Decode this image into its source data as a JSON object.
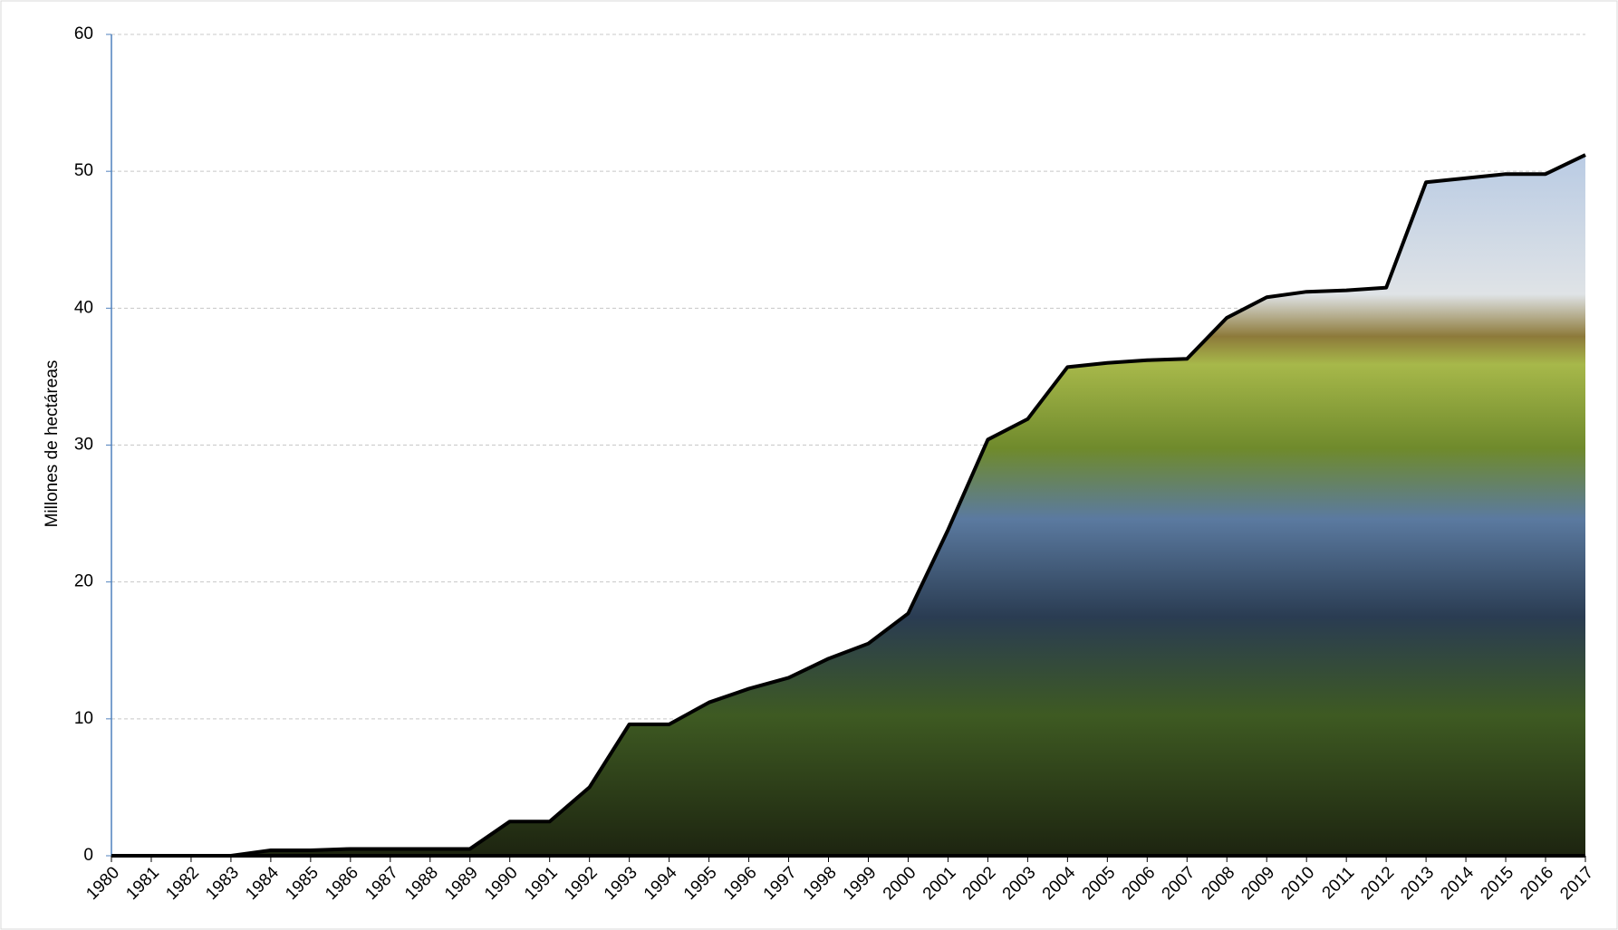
{
  "chart_data": {
    "type": "area",
    "y_label": "Millones de hectáreas",
    "categories": [
      "1980",
      "1981",
      "1982",
      "1983",
      "1984",
      "1985",
      "1986",
      "1987",
      "1988",
      "1989",
      "1990",
      "1991",
      "1992",
      "1993",
      "1994",
      "1995",
      "1996",
      "1997",
      "1998",
      "1999",
      "2000",
      "2001",
      "2002",
      "2003",
      "2004",
      "2005",
      "2006",
      "2007",
      "2008",
      "2009",
      "2010",
      "2011",
      "2012",
      "2013",
      "2014",
      "2015",
      "2016",
      "2017"
    ],
    "values": [
      0,
      0,
      0,
      0,
      0.4,
      0.4,
      0.5,
      0.5,
      0.5,
      0.5,
      2.5,
      2.5,
      5.0,
      9.6,
      9.6,
      11.2,
      12.2,
      13.0,
      14.4,
      15.5,
      17.7,
      23.8,
      30.4,
      31.9,
      35.7,
      36.0,
      36.2,
      36.3,
      39.3,
      40.8,
      41.2,
      41.3,
      41.5,
      49.2,
      49.5,
      49.8,
      49.8,
      51.2
    ],
    "color": "#000000",
    "ylim": [
      0,
      60
    ],
    "yticks": [
      0,
      10,
      20,
      30,
      40,
      50,
      60
    ],
    "grid": true
  }
}
